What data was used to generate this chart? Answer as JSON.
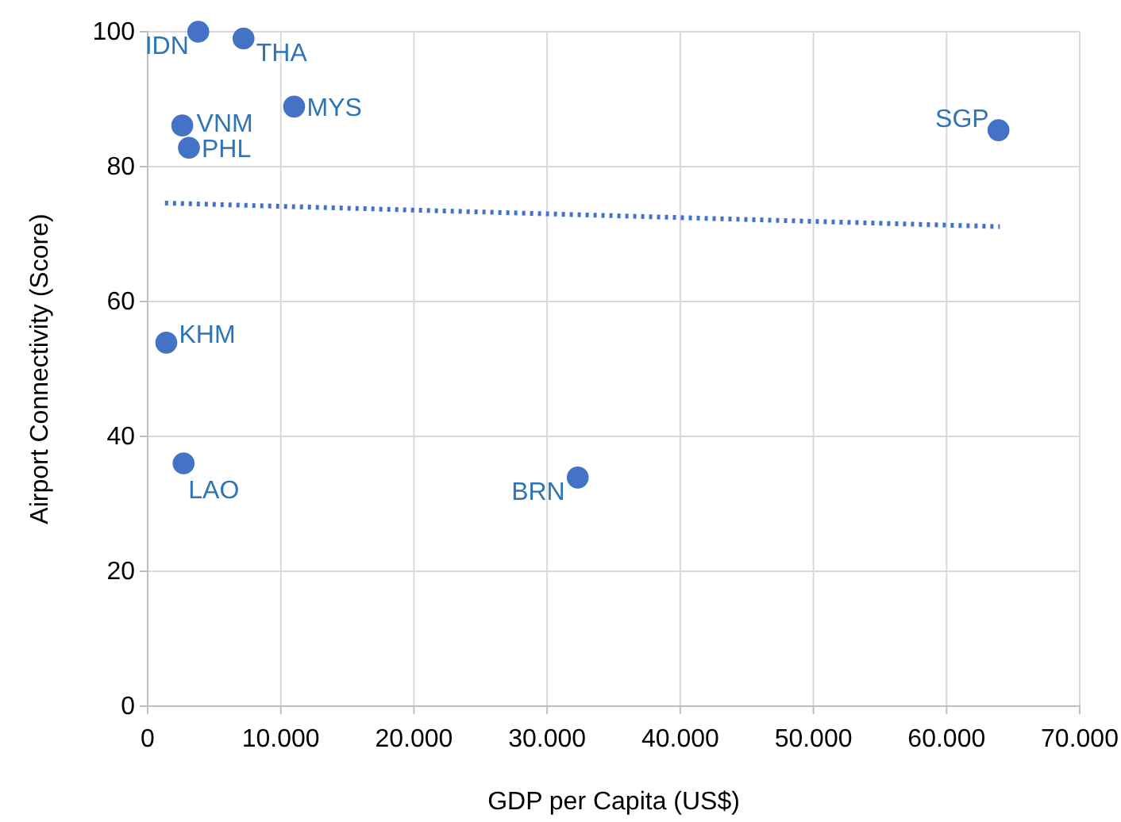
{
  "chart_data": {
    "type": "scatter",
    "xlabel": "GDP per Capita (US$)",
    "ylabel": "Airport Connectivity (Score)",
    "xlim": [
      0,
      70000
    ],
    "ylim": [
      0,
      100
    ],
    "xticks": [
      0,
      {
        "value": 10000,
        "label": "10.000"
      },
      {
        "value": 20000,
        "label": "20.000"
      },
      {
        "value": 30000,
        "label": "30.000"
      },
      {
        "value": 40000,
        "label": "40.000"
      },
      {
        "value": 50000,
        "label": "50.000"
      },
      {
        "value": 60000,
        "label": "60.000"
      },
      {
        "value": 70000,
        "label": "70.000"
      }
    ],
    "yticks": [
      0,
      20,
      40,
      60,
      80,
      100
    ],
    "grid": true,
    "series": [
      {
        "color": "#4472c4",
        "marker": "circle",
        "x": [
          3800,
          7200,
          11000,
          2600,
          3100,
          63900,
          1400,
          2700,
          32300
        ],
        "values": [
          100,
          99,
          88.9,
          86.1,
          82.8,
          85.4,
          53.9,
          36,
          33.9
        ]
      },
      {
        "type": "line",
        "color": "#4472c4",
        "line_style": "dotted",
        "marker": "none",
        "x": [
          1300,
          64000
        ],
        "values": [
          74.6,
          71.1
        ]
      }
    ],
    "annotations": [
      {
        "text": "IDN",
        "x": 3800,
        "y": 100
      },
      {
        "text": "THA",
        "x": 7200,
        "y": 99
      },
      {
        "text": "MYS",
        "x": 11000,
        "y": 88.9
      },
      {
        "text": "VNM",
        "x": 2600,
        "y": 86.1
      },
      {
        "text": "PHL",
        "x": 3100,
        "y": 82.8
      },
      {
        "text": "SGP",
        "x": 63900,
        "y": 85.4
      },
      {
        "text": "KHM",
        "x": 1400,
        "y": 53.9
      },
      {
        "text": "LAO",
        "x": 2700,
        "y": 36
      },
      {
        "text": "BRN",
        "x": 32300,
        "y": 33.9
      }
    ]
  }
}
